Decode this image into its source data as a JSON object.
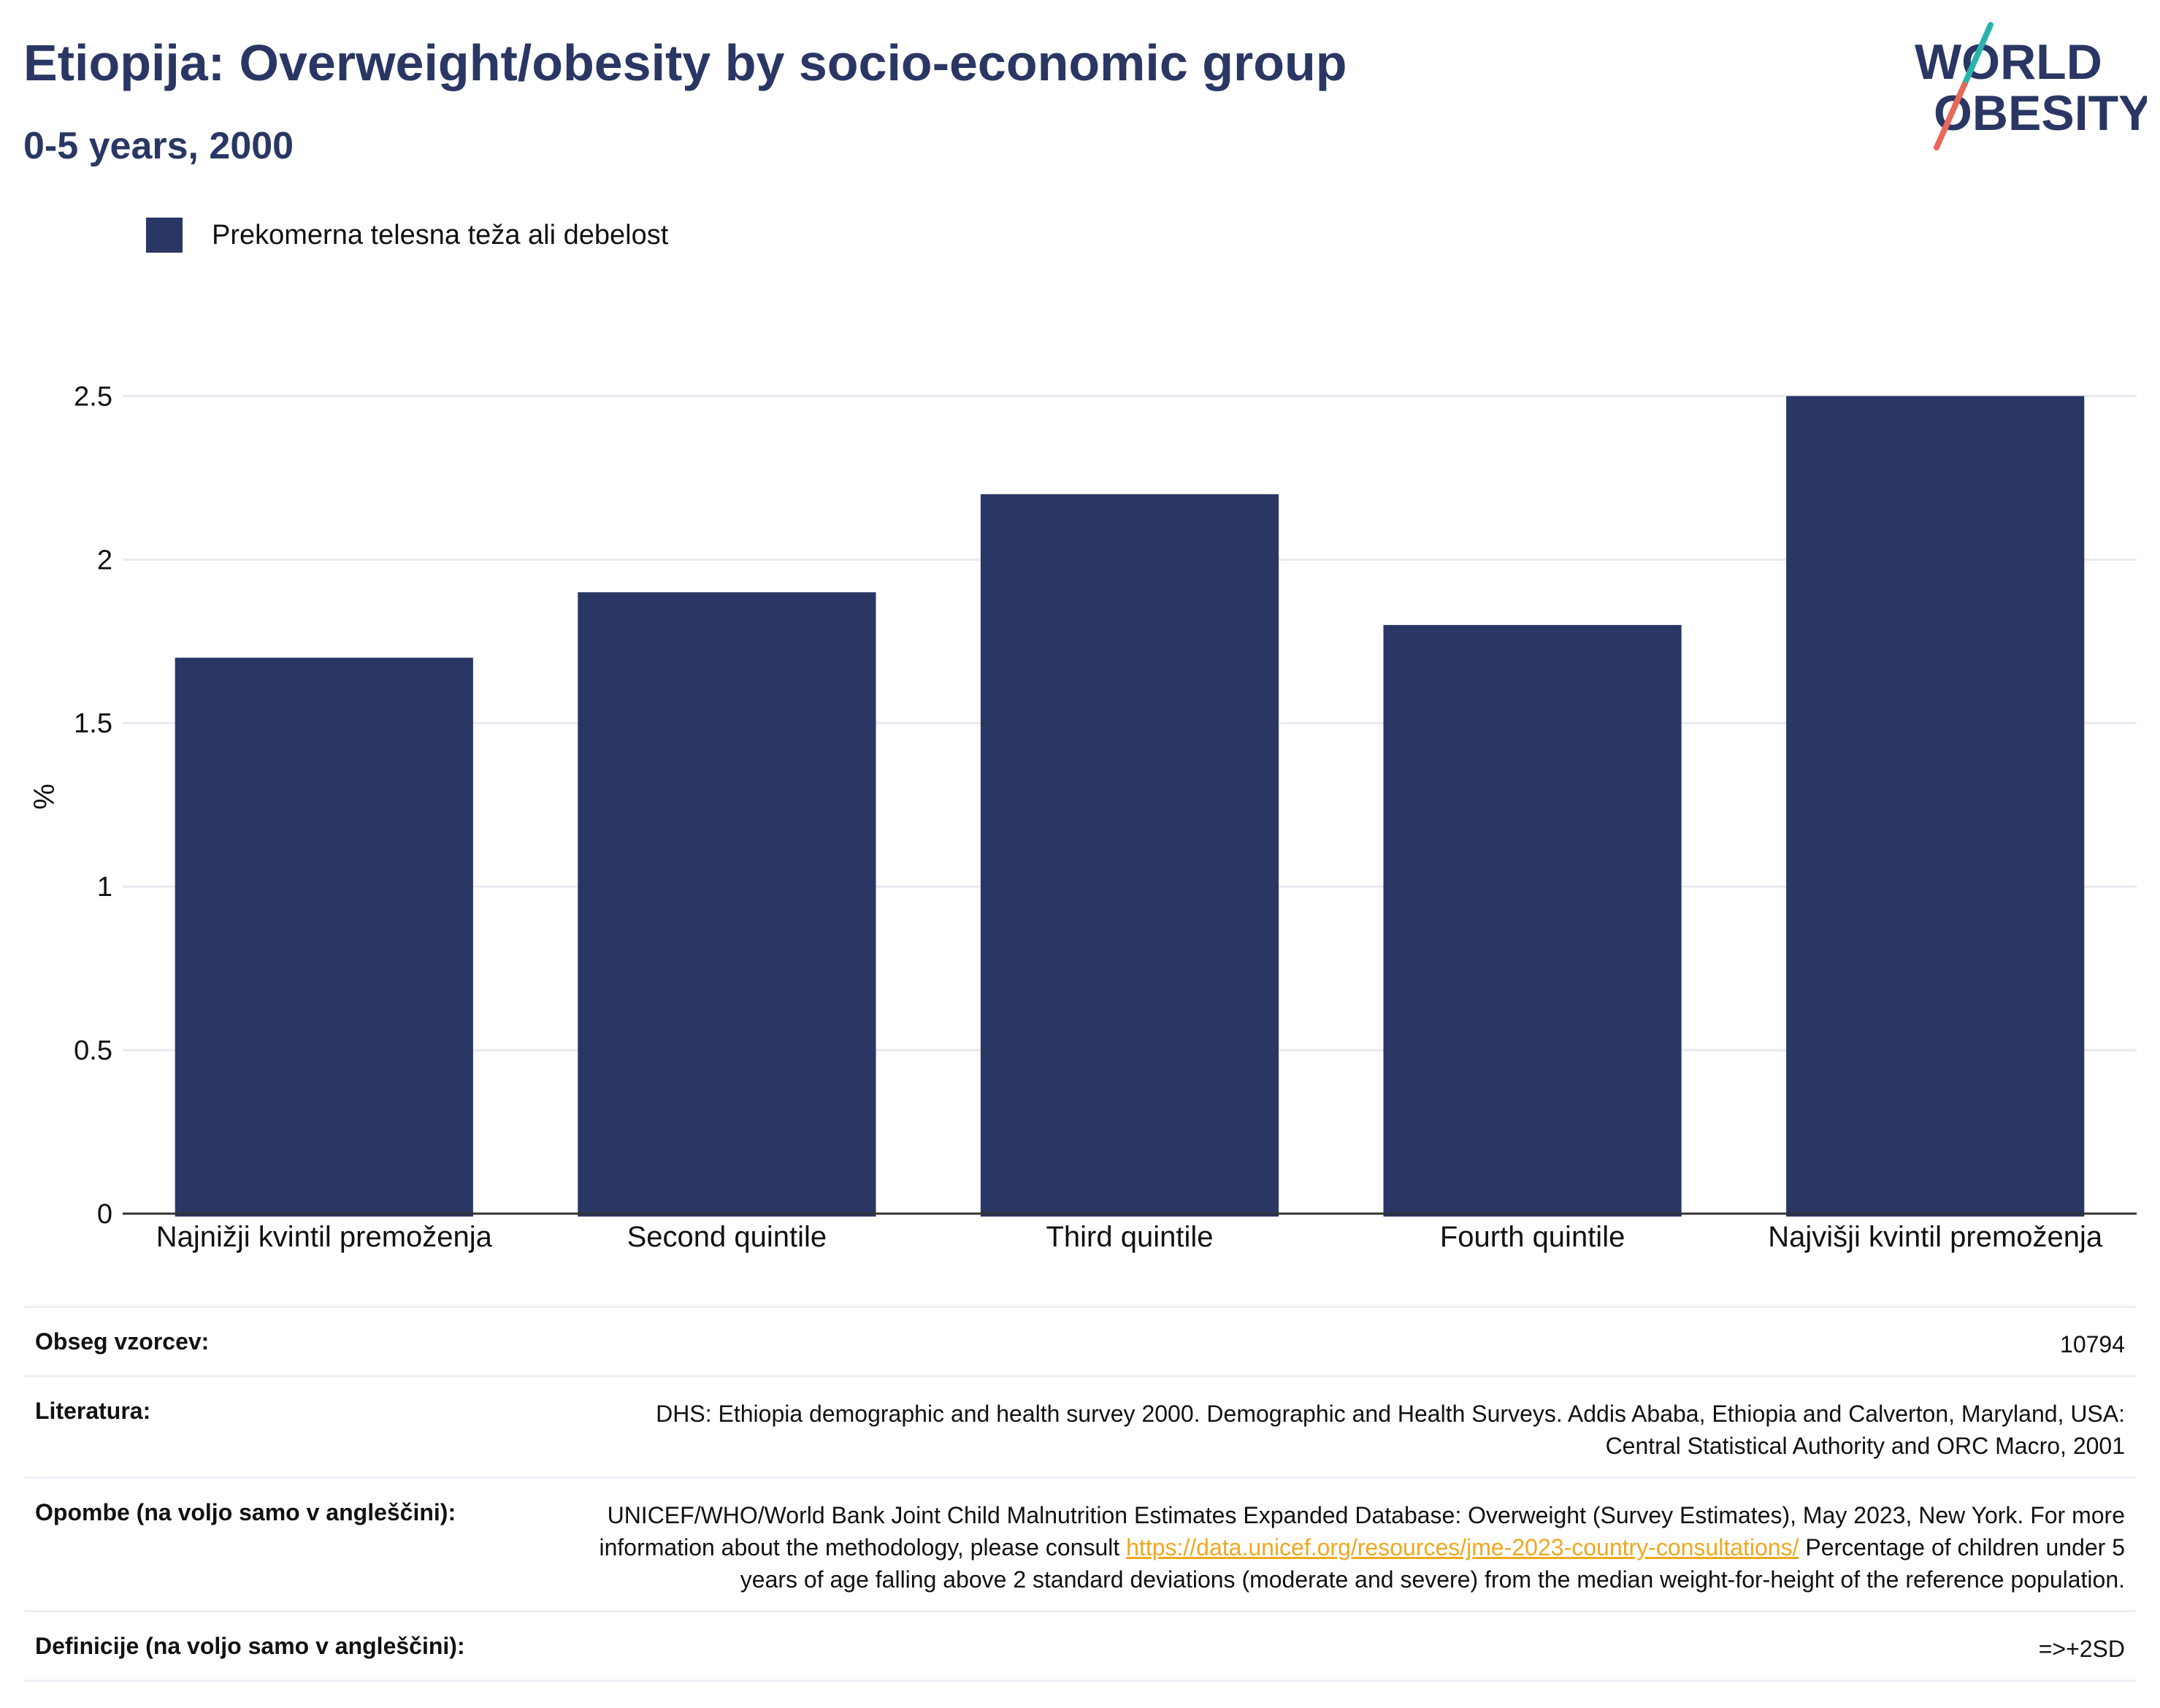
{
  "header": {
    "title": "Etiopija: Overweight/obesity by socio-economic group",
    "subtitle": "0-5 years, 2000"
  },
  "logo": {
    "line1": "WORLD",
    "line2": "OBESITY",
    "color": "#2a3663",
    "accent_teal": "#2ab3ad",
    "accent_red": "#e8685a"
  },
  "chart_data": {
    "type": "bar",
    "categories": [
      "Najnižji kvintil premoženja",
      "Second quintile",
      "Third quintile",
      "Fourth quintile",
      "Najvišji kvintil premoženja"
    ],
    "series": [
      {
        "name": "Prekomerna telesna teža ali debelost",
        "values": [
          1.7,
          1.9,
          2.2,
          1.8,
          2.5
        ],
        "color": "#2a3663"
      }
    ],
    "ylabel": "%",
    "ylim": [
      0,
      2.5
    ],
    "yticks": [
      0,
      0.5,
      1,
      1.5,
      2,
      2.5
    ],
    "ytick_labels": [
      "0",
      "0.5",
      "1",
      "1.5",
      "2",
      "2.5"
    ],
    "grid": true,
    "legend_position": "top-left"
  },
  "notes": [
    {
      "label": "Obseg vzorcev:",
      "value": "10794"
    },
    {
      "label": "Literatura:",
      "value": "DHS: Ethiopia demographic and health survey 2000. Demographic and Health Surveys. Addis Ababa, Ethiopia and Calverton, Maryland, USA: Central Statistical Authority and ORC Macro, 2001"
    },
    {
      "label": "Opombe (na voljo samo v angleščini):",
      "value_before": "UNICEF/WHO/World Bank Joint Child Malnutrition Estimates Expanded Database: Overweight (Survey Estimates), May 2023, New York. For more information about the methodology, please consult ",
      "link": "https://data.unicef.org/resources/jme-2023-country-consultations/",
      "value_after": " Percentage of children under 5 years of age falling above 2 standard deviations (moderate and severe) from the median weight-for-height of the reference population."
    },
    {
      "label": "Definicije (na voljo samo v angleščini):",
      "value": "=>+2SD"
    }
  ]
}
